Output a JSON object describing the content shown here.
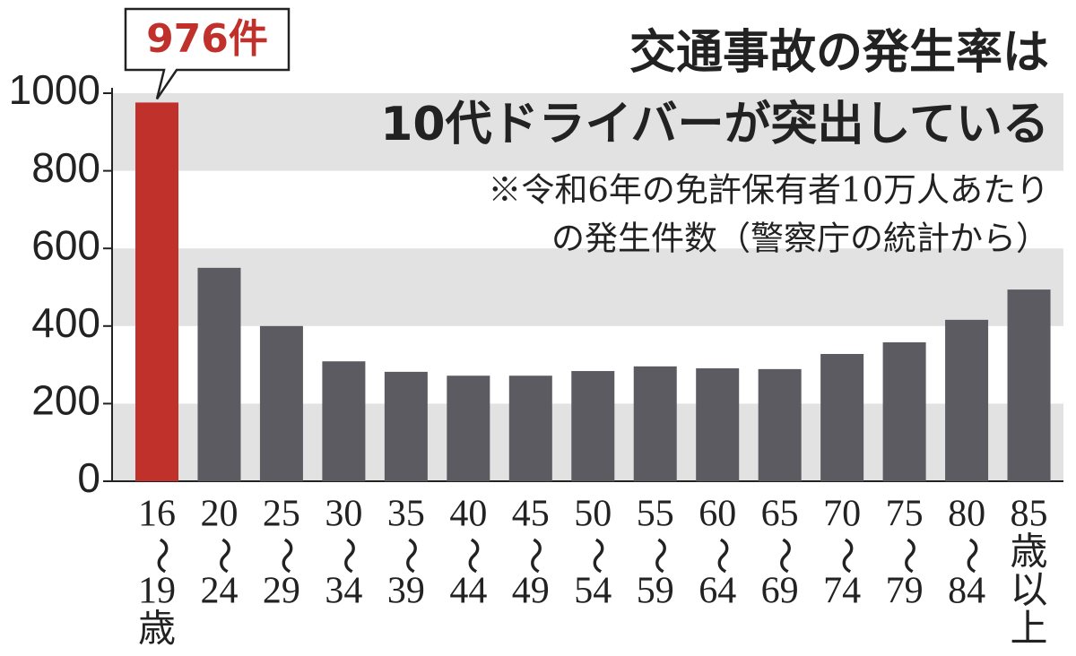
{
  "chart_data": {
    "type": "bar",
    "title": [
      "交通事故の発生率は",
      "10代ドライバーが突出している"
    ],
    "note": [
      "※令和6年の免許保有者10万人あたり",
      "の発生件数（警察庁の統計から）"
    ],
    "categories": [
      [
        "16",
        "〜",
        "19",
        "歳"
      ],
      [
        "20",
        "〜",
        "24"
      ],
      [
        "25",
        "〜",
        "29"
      ],
      [
        "30",
        "〜",
        "34"
      ],
      [
        "35",
        "〜",
        "39"
      ],
      [
        "40",
        "〜",
        "44"
      ],
      [
        "45",
        "〜",
        "49"
      ],
      [
        "50",
        "〜",
        "54"
      ],
      [
        "55",
        "〜",
        "59"
      ],
      [
        "60",
        "〜",
        "64"
      ],
      [
        "65",
        "〜",
        "69"
      ],
      [
        "70",
        "〜",
        "74"
      ],
      [
        "75",
        "〜",
        "79"
      ],
      [
        "80",
        "〜",
        "84"
      ],
      [
        "85",
        "歳",
        "以",
        "上"
      ]
    ],
    "values": [
      976,
      550,
      400,
      309,
      282,
      272,
      272,
      284,
      296,
      291,
      289,
      328,
      358,
      416,
      494
    ],
    "value_labels": [
      "976件",
      null,
      null,
      null,
      null,
      null,
      null,
      null,
      null,
      null,
      null,
      null,
      null,
      null,
      null
    ],
    "colors": [
      "#c1312b",
      "#5b5b61",
      "#5b5b61",
      "#5b5b61",
      "#5b5b61",
      "#5b5b61",
      "#5b5b61",
      "#5b5b61",
      "#5b5b61",
      "#5b5b61",
      "#5b5b61",
      "#5b5b61",
      "#5b5b61",
      "#5b5b61",
      "#5b5b61"
    ],
    "ylim": [
      0,
      1000
    ],
    "yticks": [
      0,
      200,
      400,
      600,
      800,
      1000
    ],
    "grid_bands": true,
    "band_color": "#e2e2e2"
  }
}
